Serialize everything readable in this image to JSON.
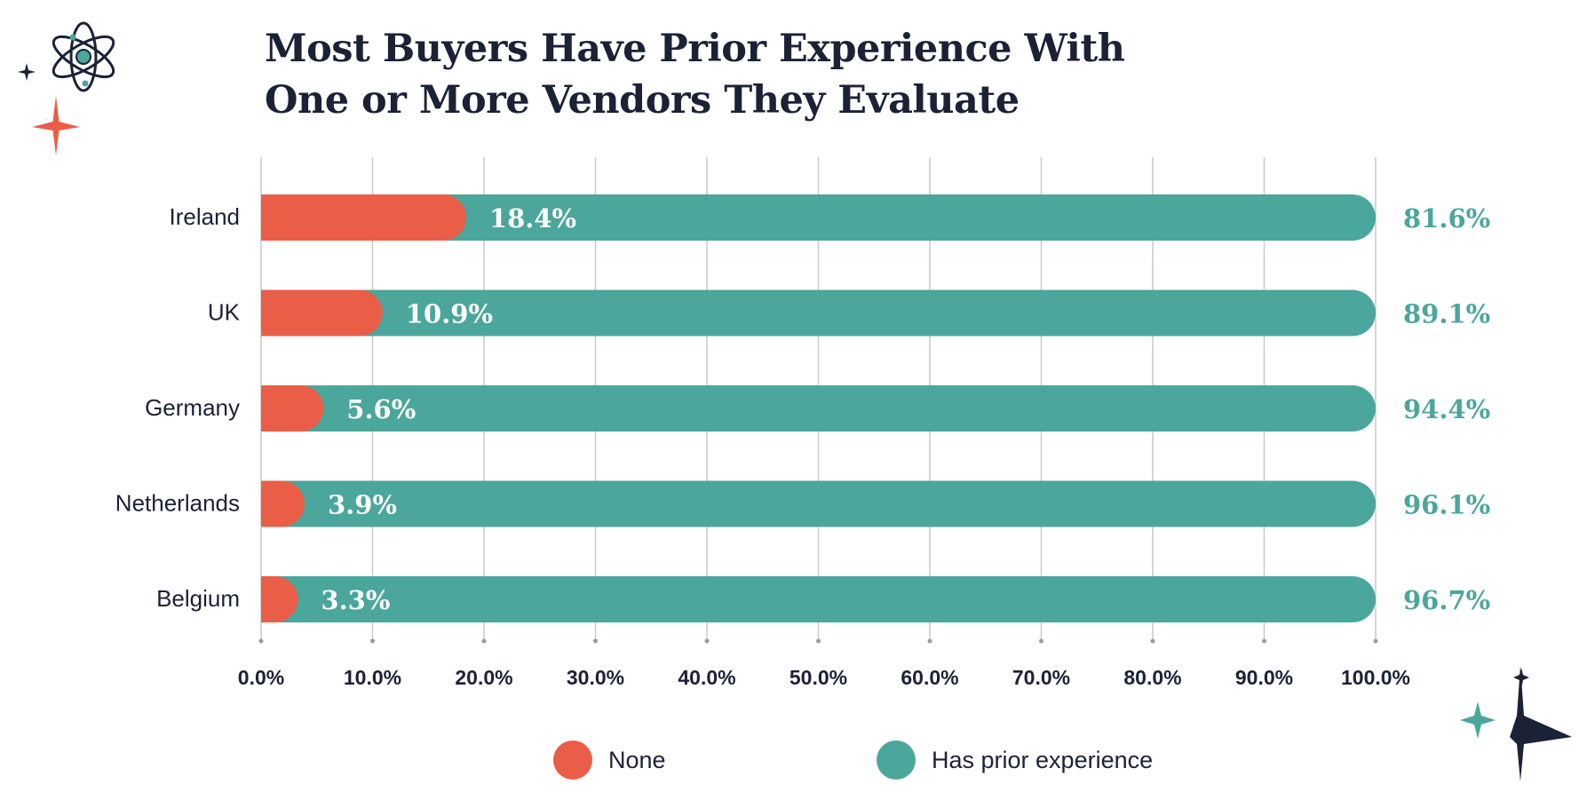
{
  "title_lines": [
    "Most Buyers Have Prior Experience With",
    "One or More Vendors They Evaluate"
  ],
  "colors": {
    "none": "#ea5e48",
    "has_prior": "#4ba69b",
    "text": "#1b2236",
    "grid": "#c9c9c9"
  },
  "icons": [
    "atom-icon",
    "sparkle-icon"
  ],
  "chart_data": {
    "type": "bar",
    "orientation": "horizontal",
    "stacked": true,
    "categories": [
      "Ireland",
      "UK",
      "Germany",
      "Netherlands",
      "Belgium"
    ],
    "series": [
      {
        "name": "None",
        "values": [
          18.4,
          10.9,
          5.6,
          3.9,
          3.3
        ],
        "labels": [
          "18.4%",
          "10.9%",
          "5.6%",
          "3.9%",
          "3.3%"
        ]
      },
      {
        "name": "Has prior experience",
        "values": [
          81.6,
          89.1,
          94.4,
          96.1,
          96.7
        ],
        "labels": [
          "81.6%",
          "89.1%",
          "94.4%",
          "96.1%",
          "96.7%"
        ]
      }
    ],
    "xlim": [
      0,
      100
    ],
    "xticks": [
      "0.0%",
      "10.0%",
      "20.0%",
      "30.0%",
      "40.0%",
      "50.0%",
      "60.0%",
      "70.0%",
      "80.0%",
      "90.0%",
      "100.0%"
    ],
    "grid": true,
    "legend": "bottom"
  }
}
